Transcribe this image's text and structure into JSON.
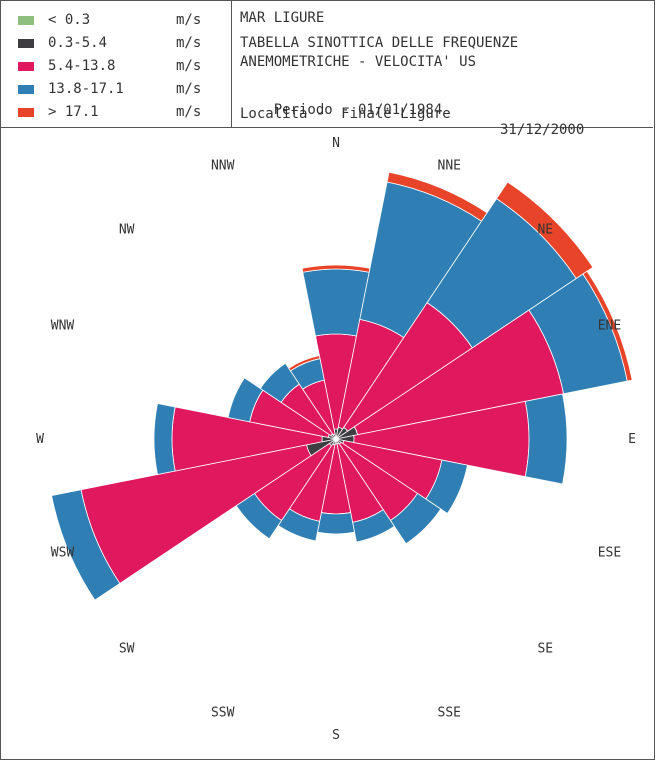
{
  "header": {
    "region": "MAR LIGURE",
    "title_line1": "TABELLA SINOTTICA DELLE FREQUENZE",
    "title_line2": "ANEMOMETRICHE - VELOCITA' US",
    "period_label": "Periodo - 01/01/1984",
    "period_end": "31/12/2000",
    "location": "Localita -  Finale Ligure"
  },
  "legend": [
    {
      "range": "< 0.3",
      "unit": "m/s",
      "color": "#8fbf7f"
    },
    {
      "range": "0.3-5.4",
      "unit": "m/s",
      "color": "#3d3d42"
    },
    {
      "range": "5.4-13.8",
      "unit": "m/s",
      "color": "#e0195f"
    },
    {
      "range": "13.8-17.1",
      "unit": "m/s",
      "color": "#2f7fb5"
    },
    {
      "range": "> 17.1",
      "unit": "m/s",
      "color": "#e8442a"
    }
  ],
  "chart_data": {
    "type": "wind-rose",
    "directions": [
      "N",
      "NNE",
      "NE",
      "ENE",
      "E",
      "ESE",
      "SE",
      "SSE",
      "S",
      "SSW",
      "SW",
      "WSW",
      "W",
      "WNW",
      "NW",
      "NNW"
    ],
    "series": [
      {
        "name": "< 0.3",
        "values": [
          0,
          0,
          0,
          0,
          0,
          0,
          0,
          0,
          0,
          0,
          0,
          0,
          0,
          0,
          0,
          0
        ]
      },
      {
        "name": "0.3-5.4",
        "values": [
          10,
          12,
          14,
          22,
          18,
          8,
          6,
          5,
          5,
          6,
          8,
          30,
          14,
          8,
          6,
          5
        ]
      },
      {
        "name": "5.4-13.8",
        "values": [
          95,
          110,
          150,
          210,
          175,
          100,
          92,
          80,
          70,
          78,
          90,
          230,
          150,
          80,
          60,
          55
        ]
      },
      {
        "name": "13.8-17.1",
        "values": [
          65,
          140,
          125,
          65,
          38,
          26,
          28,
          20,
          20,
          20,
          22,
          30,
          18,
          22,
          25,
          22
        ]
      },
      {
        "name": "> 17.1",
        "values": [
          4,
          10,
          20,
          5,
          0,
          0,
          0,
          0,
          0,
          0,
          0,
          0,
          0,
          0,
          0,
          3
        ]
      }
    ]
  }
}
